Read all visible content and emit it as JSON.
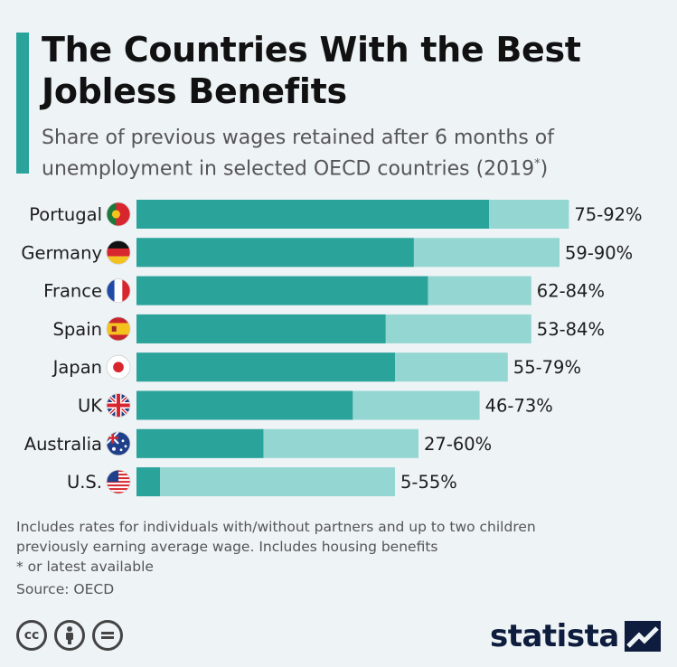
{
  "header": {
    "title": "The Countries With the Best Jobless Benefits",
    "subtitle": "Share of previous wages retained after 6 months of unemployment in selected OECD countries (2019",
    "subtitle_sup": "*",
    "subtitle_end": ")"
  },
  "chart_data": {
    "type": "bar",
    "orientation": "horizontal",
    "categories": [
      "Portugal",
      "Germany",
      "France",
      "Spain",
      "Japan",
      "UK",
      "Australia",
      "U.S."
    ],
    "flag_icons": [
      "portugal-flag-icon",
      "germany-flag-icon",
      "france-flag-icon",
      "spain-flag-icon",
      "japan-flag-icon",
      "uk-flag-icon",
      "australia-flag-icon",
      "us-flag-icon"
    ],
    "series": [
      {
        "values": [
          75,
          59,
          62,
          53,
          55,
          46,
          27,
          5
        ]
      },
      {
        "values": [
          92,
          90,
          84,
          84,
          79,
          73,
          60,
          55
        ]
      }
    ],
    "labels": [
      "75-92%",
      "59-90%",
      "62-84%",
      "53-84%",
      "55-79%",
      "46-73%",
      "27-60%",
      "5-55%"
    ],
    "colors": {
      "low": "#2aa39b",
      "high": "#94d6d1"
    },
    "xlim": [
      0,
      100
    ],
    "grid": false,
    "legend": "none"
  },
  "footnotes": {
    "line1": "Includes rates for individuals with/without partners and up to two children",
    "line2": "previously earning average wage. Includes housing benefits",
    "line3": "* or latest available",
    "source": "Source: OECD"
  },
  "icons": [
    "cc-icon",
    "attribution-icon",
    "no-derivatives-icon"
  ],
  "brand": {
    "logo_text": "statista"
  }
}
